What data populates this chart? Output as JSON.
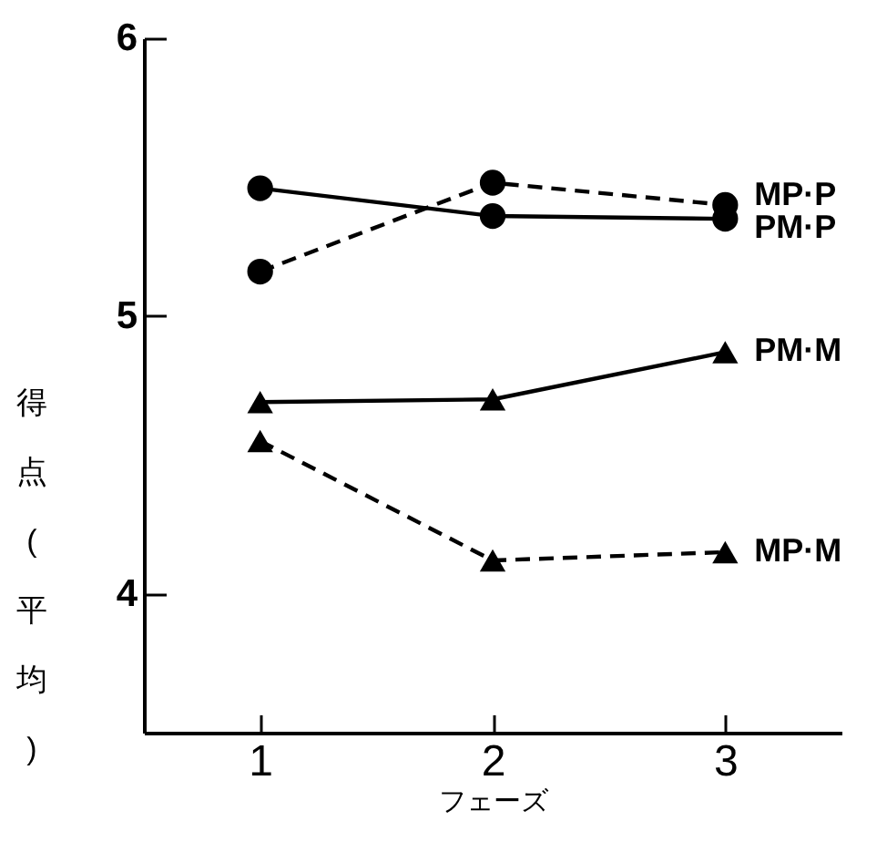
{
  "chart_data": {
    "type": "line",
    "xlabel": "フェーズ",
    "ylabel": "得点(平均)",
    "categories": [
      "1",
      "2",
      "3"
    ],
    "ylim": [
      3.5,
      6
    ],
    "yticks": [
      4,
      5,
      6
    ],
    "grid": false,
    "legend": false,
    "series": [
      {
        "name": "PM·P",
        "color": "#000000",
        "marker": "circle",
        "line_style": "solid",
        "values": [
          5.46,
          5.36,
          5.35
        ]
      },
      {
        "name": "MP·P",
        "color": "#000000",
        "marker": "circle",
        "line_style": "dashed",
        "values": [
          5.16,
          5.48,
          5.4
        ]
      },
      {
        "name": "PM·M",
        "color": "#000000",
        "marker": "triangle",
        "line_style": "solid",
        "values": [
          4.69,
          4.7,
          4.87
        ]
      },
      {
        "name": "MP·M",
        "color": "#000000",
        "marker": "triangle",
        "line_style": "dashed",
        "values": [
          4.55,
          4.12,
          4.15
        ]
      }
    ]
  }
}
